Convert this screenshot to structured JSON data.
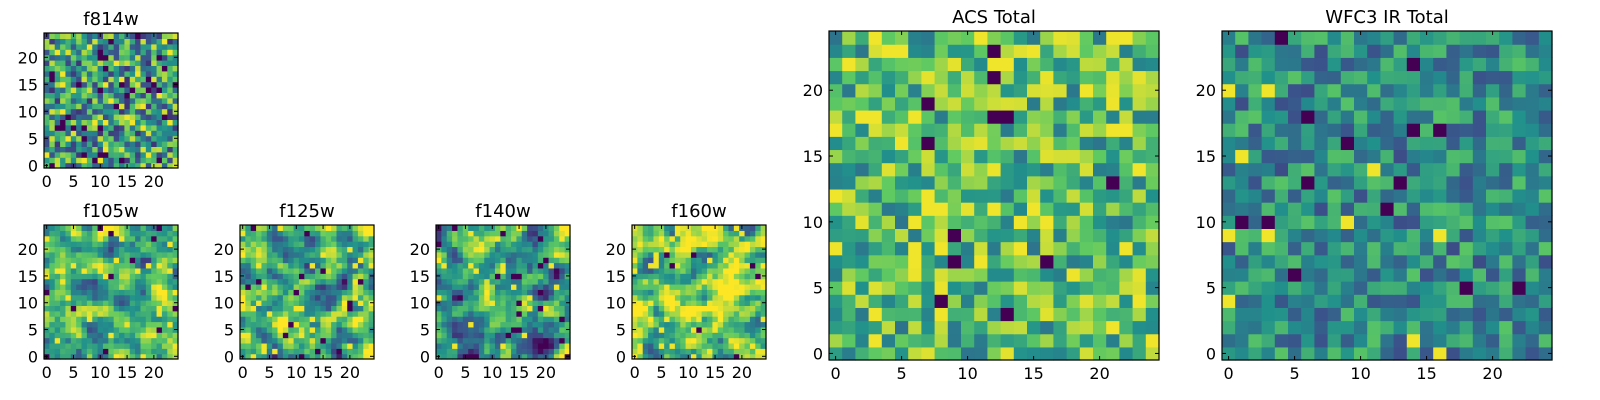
{
  "chart_data": [
    {
      "type": "heatmap",
      "title": "f814w",
      "x_ticks": [
        0,
        5,
        10,
        15,
        20
      ],
      "y_ticks": [
        0,
        5,
        10,
        15,
        20
      ],
      "xlim": [
        -0.5,
        24.5
      ],
      "ylim": [
        -0.5,
        24.5
      ],
      "grid": "25x25",
      "seed": 1,
      "mean": 0.55,
      "spread": 0.4,
      "smooth": 0,
      "dark_frac": 0.05,
      "bright_frac": 0.03
    },
    {
      "type": "heatmap",
      "title": "f105w",
      "x_ticks": [
        0,
        5,
        10,
        15,
        20
      ],
      "y_ticks": [
        0,
        5,
        10,
        15,
        20
      ],
      "xlim": [
        -0.5,
        24.5
      ],
      "ylim": [
        -0.5,
        24.5
      ],
      "grid": "25x25",
      "seed": 2,
      "mean": 0.62,
      "spread": 0.35,
      "smooth": 1,
      "dark_frac": 0.02,
      "bright_frac": 0.04
    },
    {
      "type": "heatmap",
      "title": "f125w",
      "x_ticks": [
        0,
        5,
        10,
        15,
        20
      ],
      "y_ticks": [
        0,
        5,
        10,
        15,
        20
      ],
      "xlim": [
        -0.5,
        24.5
      ],
      "ylim": [
        -0.5,
        24.5
      ],
      "grid": "25x25",
      "seed": 3,
      "mean": 0.6,
      "spread": 0.4,
      "smooth": 1,
      "dark_frac": 0.02,
      "bright_frac": 0.04
    },
    {
      "type": "heatmap",
      "title": "f140w",
      "x_ticks": [
        0,
        5,
        10,
        15,
        20
      ],
      "y_ticks": [
        0,
        5,
        10,
        15,
        20
      ],
      "xlim": [
        -0.5,
        24.5
      ],
      "ylim": [
        -0.5,
        24.5
      ],
      "grid": "25x25",
      "seed": 4,
      "mean": 0.58,
      "spread": 0.38,
      "smooth": 1,
      "dark_frac": 0.02,
      "bright_frac": 0.03
    },
    {
      "type": "heatmap",
      "title": "f160w",
      "x_ticks": [
        0,
        5,
        10,
        15,
        20
      ],
      "y_ticks": [
        0,
        5,
        10,
        15,
        20
      ],
      "xlim": [
        -0.5,
        24.5
      ],
      "ylim": [
        -0.5,
        24.5
      ],
      "grid": "25x25",
      "seed": 5,
      "mean": 0.7,
      "spread": 0.35,
      "smooth": 1,
      "dark_frac": 0.01,
      "bright_frac": 0.06
    },
    {
      "type": "heatmap",
      "title": "ACS Total",
      "x_ticks": [
        0,
        5,
        10,
        15,
        20
      ],
      "y_ticks": [
        0,
        5,
        10,
        15,
        20
      ],
      "xlim": [
        -0.5,
        24.5
      ],
      "ylim": [
        -0.5,
        24.5
      ],
      "grid": "25x25",
      "seed": 6,
      "mean": 0.68,
      "spread": 0.3,
      "smooth": 0,
      "dark_frac": 0.02,
      "bright_frac": 0.04
    },
    {
      "type": "heatmap",
      "title": "WFC3 IR Total",
      "x_ticks": [
        0,
        5,
        10,
        15,
        20
      ],
      "y_ticks": [
        0,
        5,
        10,
        15,
        20
      ],
      "xlim": [
        -0.5,
        24.5
      ],
      "ylim": [
        -0.5,
        24.5
      ],
      "grid": "25x25",
      "seed": 7,
      "mean": 0.48,
      "spread": 0.25,
      "smooth": 0,
      "dark_frac": 0.015,
      "bright_frac": 0.012
    }
  ],
  "colormap": [
    "#440154",
    "#3b528b",
    "#21918c",
    "#5ec962",
    "#fde725"
  ]
}
